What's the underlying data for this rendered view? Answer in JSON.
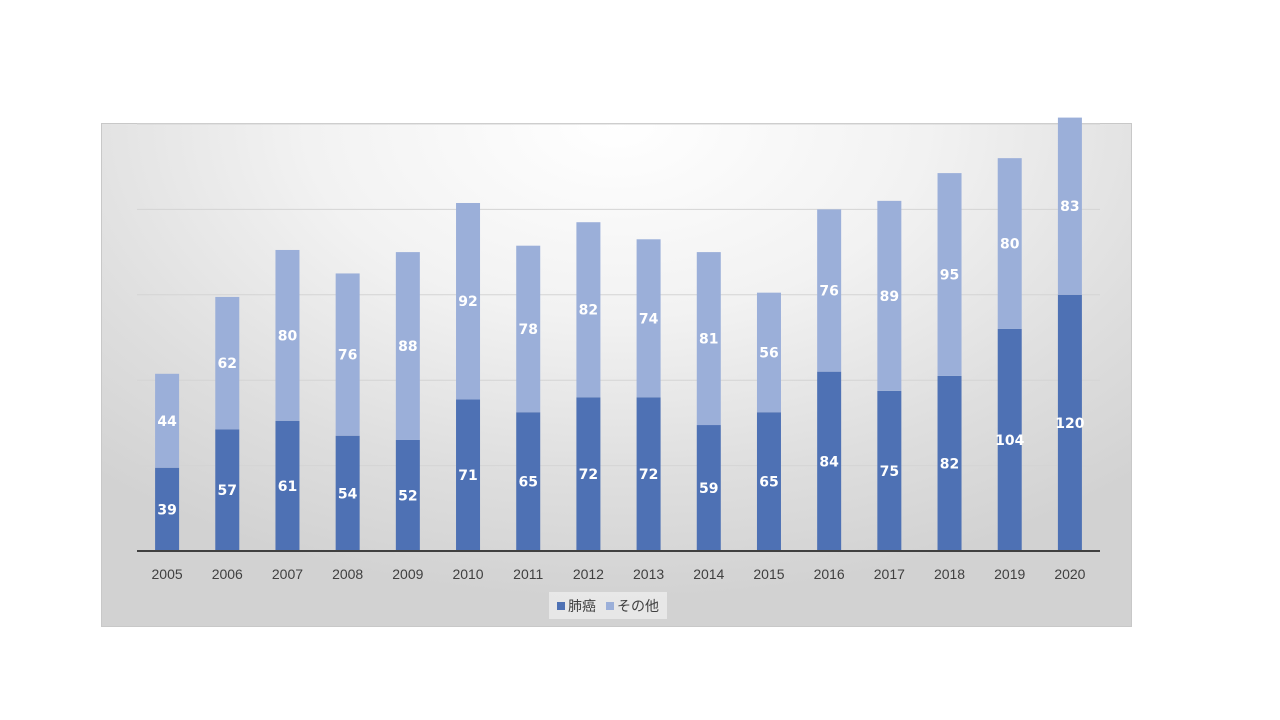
{
  "colors": {
    "series1": "#4e71b4",
    "series2": "#9bafd9",
    "axis": "#404040",
    "grid": "#d4d4d4"
  },
  "chart_data": {
    "type": "bar",
    "stacked": true,
    "categories": [
      "2005",
      "2006",
      "2007",
      "2008",
      "2009",
      "2010",
      "2011",
      "2012",
      "2013",
      "2014",
      "2015",
      "2016",
      "2017",
      "2018",
      "2019",
      "2020"
    ],
    "series": [
      {
        "name": "肺癌",
        "values": [
          39,
          57,
          61,
          54,
          52,
          71,
          65,
          72,
          72,
          59,
          65,
          84,
          75,
          82,
          104,
          120
        ]
      },
      {
        "name": "その他",
        "values": [
          44,
          62,
          80,
          76,
          88,
          92,
          78,
          82,
          74,
          81,
          56,
          76,
          89,
          95,
          80,
          83
        ]
      }
    ],
    "title": "",
    "xlabel": "",
    "ylabel": "",
    "ylim": [
      0,
      200
    ],
    "grid": true,
    "legend_position": "bottom",
    "data_labels": true
  }
}
